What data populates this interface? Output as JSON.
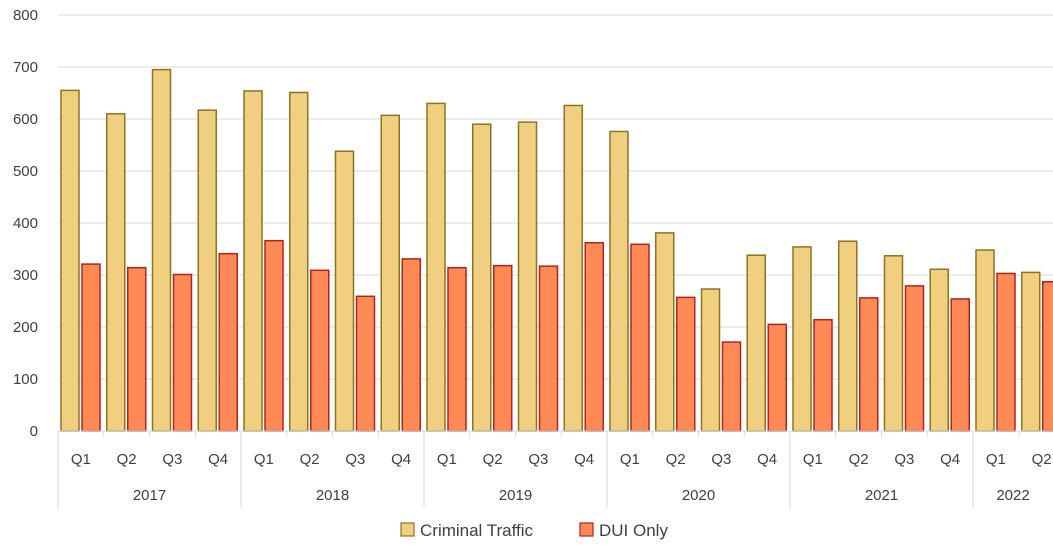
{
  "chart_data": {
    "type": "bar",
    "title": "",
    "xlabel": "",
    "ylabel": "",
    "ylim": [
      0,
      800
    ],
    "y_ticks": [
      0,
      100,
      200,
      300,
      400,
      500,
      600,
      700,
      800
    ],
    "grid": true,
    "legend_position": "bottom",
    "categories": [
      {
        "year": "2017",
        "quarter": "Q1"
      },
      {
        "year": "2017",
        "quarter": "Q2"
      },
      {
        "year": "2017",
        "quarter": "Q3"
      },
      {
        "year": "2017",
        "quarter": "Q4"
      },
      {
        "year": "2018",
        "quarter": "Q1"
      },
      {
        "year": "2018",
        "quarter": "Q2"
      },
      {
        "year": "2018",
        "quarter": "Q3"
      },
      {
        "year": "2018",
        "quarter": "Q4"
      },
      {
        "year": "2019",
        "quarter": "Q1"
      },
      {
        "year": "2019",
        "quarter": "Q2"
      },
      {
        "year": "2019",
        "quarter": "Q3"
      },
      {
        "year": "2019",
        "quarter": "Q4"
      },
      {
        "year": "2020",
        "quarter": "Q1"
      },
      {
        "year": "2020",
        "quarter": "Q2"
      },
      {
        "year": "2020",
        "quarter": "Q3"
      },
      {
        "year": "2020",
        "quarter": "Q4"
      },
      {
        "year": "2021",
        "quarter": "Q1"
      },
      {
        "year": "2021",
        "quarter": "Q2"
      },
      {
        "year": "2021",
        "quarter": "Q3"
      },
      {
        "year": "2021",
        "quarter": "Q4"
      },
      {
        "year": "2022",
        "quarter": "Q1"
      },
      {
        "year": "2022",
        "quarter": "Q2"
      }
    ],
    "years": [
      "2017",
      "2018",
      "2019",
      "2020",
      "2021",
      "2022"
    ],
    "series": [
      {
        "name": "Criminal Traffic",
        "fill": "#F0D080",
        "stroke": "#8C7420",
        "values": [
          655,
          610,
          695,
          617,
          654,
          651,
          538,
          607,
          630,
          590,
          594,
          626,
          576,
          381,
          273,
          338,
          354,
          365,
          337,
          311,
          348,
          305
        ]
      },
      {
        "name": "DUI Only",
        "fill": "#FF8A55",
        "stroke": "#B0241C",
        "values": [
          321,
          314,
          301,
          341,
          366,
          309,
          259,
          331,
          314,
          318,
          317,
          362,
          359,
          257,
          171,
          205,
          214,
          256,
          279,
          254,
          303,
          287
        ]
      }
    ]
  }
}
